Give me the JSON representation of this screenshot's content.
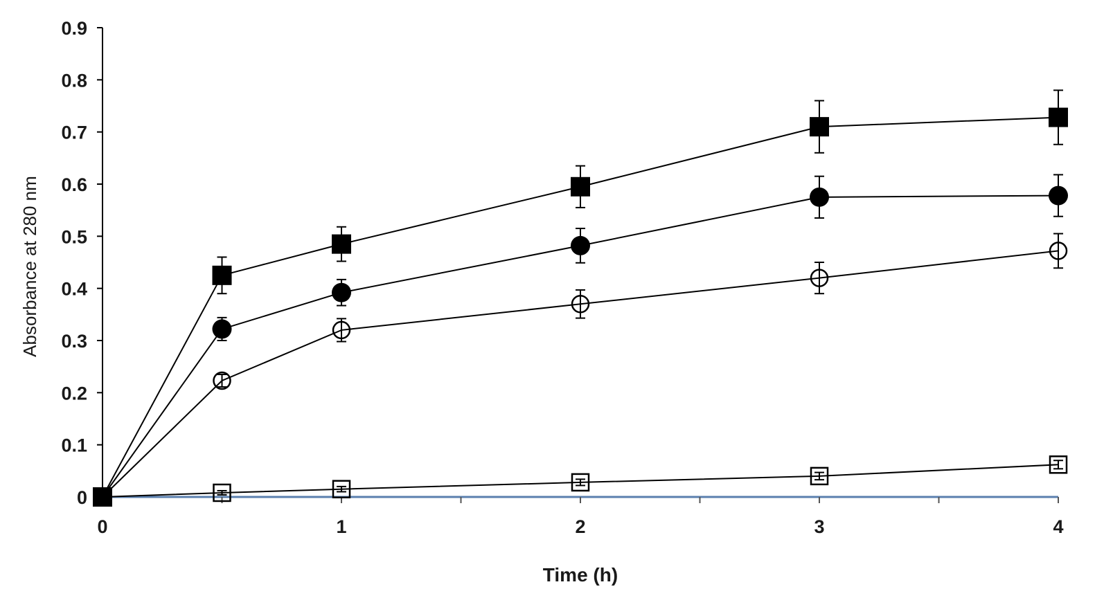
{
  "chart_data": {
    "type": "line",
    "title": "",
    "xlabel": "Time (h)",
    "ylabel": "Absorbance at 280 nm",
    "xlim": [
      0,
      4
    ],
    "ylim": [
      0,
      0.9
    ],
    "x_ticks": [
      0,
      1,
      2,
      3,
      4
    ],
    "x_tick_labels": [
      "0",
      "1",
      "2",
      "3",
      "4"
    ],
    "y_ticks": [
      0,
      0.1,
      0.2,
      0.3,
      0.4,
      0.5,
      0.6,
      0.7,
      0.8,
      0.9
    ],
    "y_tick_labels": [
      "0",
      "0.1",
      "0.2",
      "0.3",
      "0.4",
      "0.5",
      "0.6",
      "0.7",
      "0.8",
      "0.9"
    ],
    "grid": false,
    "legend": "none",
    "x": [
      0,
      0.5,
      1,
      2,
      3,
      4
    ],
    "series": [
      {
        "marker": "filled-square",
        "color": "#000000",
        "values": [
          0,
          0.425,
          0.485,
          0.595,
          0.71,
          0.728
        ],
        "errors": [
          0,
          0.035,
          0.033,
          0.04,
          0.05,
          0.052
        ]
      },
      {
        "marker": "filled-circle",
        "color": "#000000",
        "values": [
          0,
          0.322,
          0.392,
          0.482,
          0.575,
          0.578
        ],
        "errors": [
          0,
          0.022,
          0.025,
          0.033,
          0.04,
          0.04
        ]
      },
      {
        "marker": "open-circle",
        "color": "#000000",
        "values": [
          0,
          0.223,
          0.32,
          0.37,
          0.42,
          0.472
        ],
        "errors": [
          0,
          0.012,
          0.022,
          0.027,
          0.03,
          0.033
        ]
      },
      {
        "marker": "open-square",
        "color": "#000000",
        "values": [
          0,
          0.008,
          0.015,
          0.028,
          0.04,
          0.062
        ],
        "errors": [
          0,
          0.004,
          0.005,
          0.006,
          0.007,
          0.008
        ]
      }
    ]
  },
  "colors": {
    "axis": "#000000",
    "x_axis_line": "#5a7fae",
    "background": "#ffffff"
  }
}
